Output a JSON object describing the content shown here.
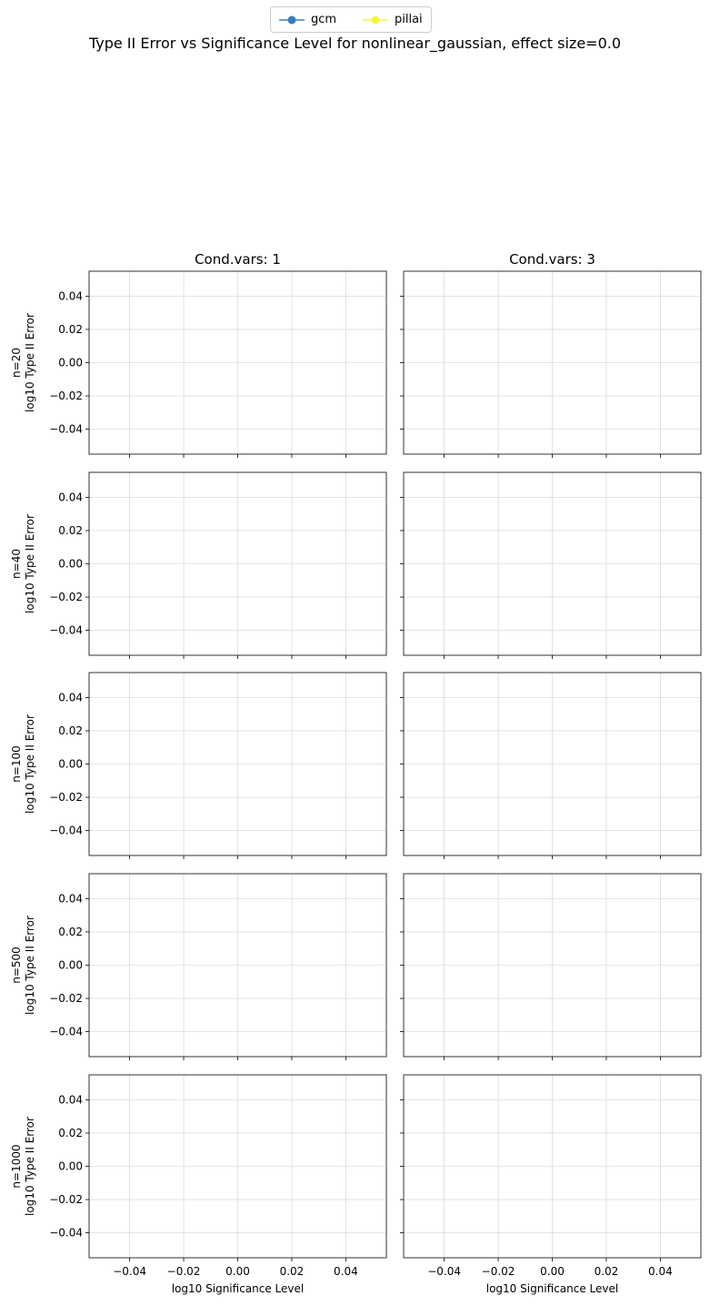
{
  "chart_data": {
    "type": "line",
    "title": "Type II Error vs Significance Level for nonlinear_gaussian, effect size=0.0",
    "legend": {
      "placement": "top-center",
      "entries": [
        {
          "name": "gcm",
          "color": "#3a7dbf",
          "marker": "circle"
        },
        {
          "name": "pillai",
          "color": "#f5f542",
          "marker": "circle"
        }
      ]
    },
    "columns": [
      "Cond.vars: 1",
      "Cond.vars: 3"
    ],
    "rows": [
      "n=20\nlog10 Type II Error",
      "n=40\nlog10 Type II Error",
      "n=100\nlog10 Type II Error",
      "n=500\nlog10 Type II Error",
      "n=1000\nlog10 Type II Error"
    ],
    "xlabel": "log10 Significance Level",
    "ylabel": "log10 Type II Error",
    "xlim": [
      -0.055,
      0.055
    ],
    "ylim": [
      -0.055,
      0.055
    ],
    "xticks": [
      -0.04,
      -0.02,
      0.0,
      0.02,
      0.04
    ],
    "xtick_labels": [
      "−0.04",
      "−0.02",
      "0.00",
      "0.02",
      "0.04"
    ],
    "yticks": [
      0.04,
      0.02,
      0.0,
      -0.02,
      -0.04
    ],
    "ytick_labels": [
      "0.04",
      "0.02",
      "0.00",
      "−0.02",
      "−0.04"
    ],
    "grid": true,
    "series": [
      {
        "name": "gcm",
        "values": []
      },
      {
        "name": "pillai",
        "values": []
      }
    ]
  }
}
